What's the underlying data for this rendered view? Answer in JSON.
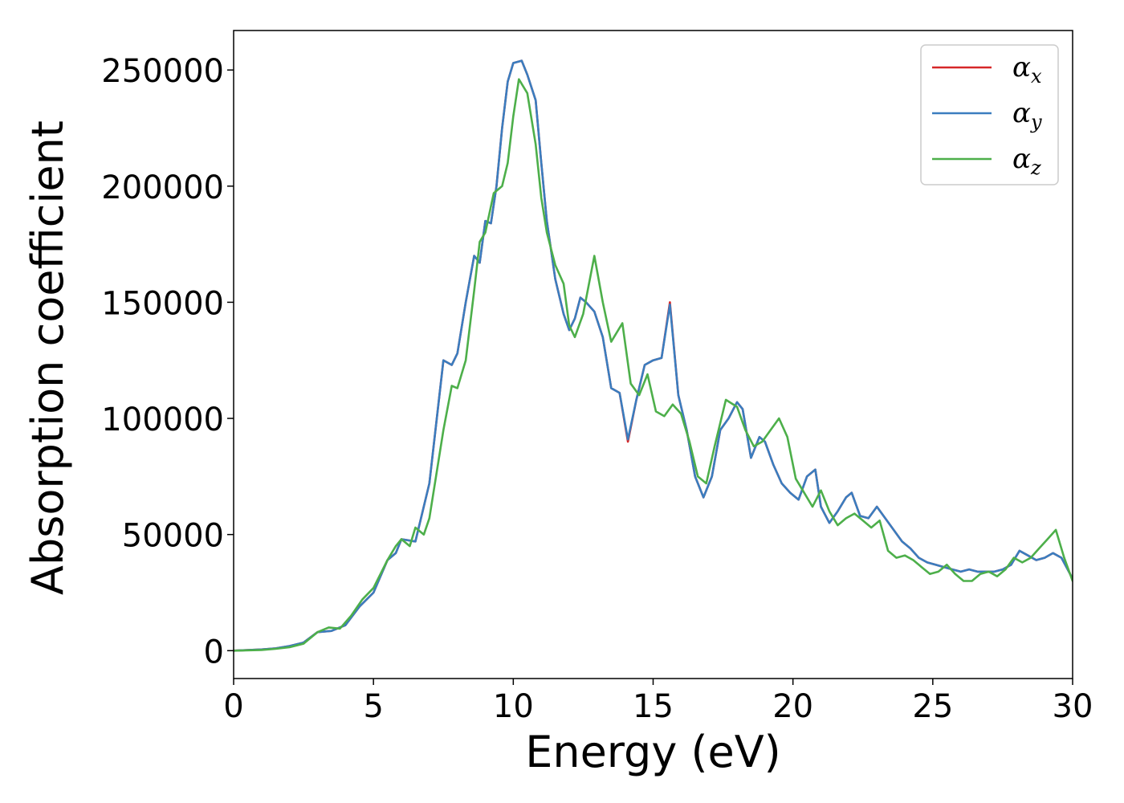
{
  "chart_data": {
    "type": "line",
    "title": "",
    "xlabel": "Energy (eV)",
    "ylabel": "Absorption coefficient",
    "xlim": [
      0,
      30
    ],
    "ylim": [
      -12000,
      267000
    ],
    "xticks": [
      0,
      5,
      10,
      15,
      20,
      25,
      30
    ],
    "yticks": [
      0,
      50000,
      100000,
      150000,
      200000,
      250000
    ],
    "grid": false,
    "legend_position": "top-right",
    "series": [
      {
        "name": "α_x",
        "legend_symbol": "α",
        "legend_sub": "x",
        "color": "#d62728",
        "x": [
          0,
          1,
          1.5,
          2,
          2.5,
          3,
          3.5,
          4,
          4.5,
          5,
          5.5,
          5.8,
          6,
          6.5,
          7,
          7.5,
          7.8,
          8,
          8.3,
          8.6,
          8.8,
          9,
          9.2,
          9.4,
          9.6,
          9.8,
          10,
          10.3,
          10.5,
          10.8,
          11,
          11.2,
          11.5,
          11.8,
          12,
          12.2,
          12.4,
          12.6,
          12.9,
          13.2,
          13.5,
          13.8,
          14.1,
          14.4,
          14.7,
          15,
          15.3,
          15.6,
          15.9,
          16.2,
          16.5,
          16.8,
          17.1,
          17.4,
          17.7,
          18,
          18.2,
          18.5,
          18.8,
          19,
          19.3,
          19.6,
          19.9,
          20.2,
          20.5,
          20.8,
          21,
          21.3,
          21.6,
          21.9,
          22.1,
          22.4,
          22.7,
          23,
          23.3,
          23.6,
          23.9,
          24.2,
          24.5,
          24.8,
          25.1,
          25.4,
          25.7,
          26,
          26.3,
          26.6,
          26.9,
          27.2,
          27.5,
          27.8,
          28.1,
          28.4,
          28.7,
          29,
          29.3,
          29.6,
          30
        ],
        "y": [
          0,
          500,
          1000,
          2000,
          3500,
          8000,
          8500,
          11000,
          19000,
          25000,
          39000,
          42000,
          48000,
          47000,
          72000,
          125000,
          123000,
          128000,
          150000,
          170000,
          167000,
          185000,
          184000,
          200000,
          225000,
          245000,
          253000,
          254000,
          248000,
          237000,
          210000,
          185000,
          160000,
          145000,
          138000,
          143000,
          152000,
          150000,
          146000,
          135000,
          113000,
          111000,
          90000,
          108000,
          123000,
          125000,
          126000,
          150000,
          110000,
          95000,
          75000,
          66000,
          75000,
          95000,
          100000,
          107000,
          104000,
          83000,
          92000,
          90000,
          80000,
          72000,
          68000,
          65000,
          75000,
          78000,
          62000,
          55000,
          60000,
          66000,
          68000,
          58000,
          57000,
          62000,
          57000,
          52000,
          47000,
          44000,
          40000,
          38000,
          37000,
          36000,
          35000,
          34000,
          35000,
          34000,
          34000,
          34000,
          35000,
          37000,
          43000,
          41000,
          39000,
          40000,
          42000,
          40000,
          31000
        ]
      },
      {
        "name": "α_y",
        "legend_symbol": "α",
        "legend_sub": "y",
        "color": "#3a7dbf",
        "x": [
          0,
          1,
          1.5,
          2,
          2.5,
          3,
          3.5,
          4,
          4.5,
          5,
          5.5,
          5.8,
          6,
          6.5,
          7,
          7.5,
          7.8,
          8,
          8.3,
          8.6,
          8.8,
          9,
          9.2,
          9.4,
          9.6,
          9.8,
          10,
          10.3,
          10.5,
          10.8,
          11,
          11.2,
          11.5,
          11.8,
          12,
          12.2,
          12.4,
          12.6,
          12.9,
          13.2,
          13.5,
          13.8,
          14.1,
          14.4,
          14.7,
          15,
          15.3,
          15.6,
          15.9,
          16.2,
          16.5,
          16.8,
          17.1,
          17.4,
          17.7,
          18,
          18.2,
          18.5,
          18.8,
          19,
          19.3,
          19.6,
          19.9,
          20.2,
          20.5,
          20.8,
          21,
          21.3,
          21.6,
          21.9,
          22.1,
          22.4,
          22.7,
          23,
          23.3,
          23.6,
          23.9,
          24.2,
          24.5,
          24.8,
          25.1,
          25.4,
          25.7,
          26,
          26.3,
          26.6,
          26.9,
          27.2,
          27.5,
          27.8,
          28.1,
          28.4,
          28.7,
          29,
          29.3,
          29.6,
          30
        ],
        "y": [
          0,
          500,
          1000,
          2000,
          3500,
          8000,
          8500,
          11000,
          19000,
          25000,
          39000,
          42000,
          48000,
          47000,
          72000,
          125000,
          123000,
          128000,
          150000,
          170000,
          167000,
          185000,
          184000,
          200000,
          225000,
          245000,
          253000,
          254000,
          248000,
          237000,
          210000,
          185000,
          160000,
          145000,
          138000,
          143000,
          152000,
          150000,
          146000,
          135000,
          113000,
          111000,
          91000,
          108000,
          123000,
          125000,
          126000,
          149000,
          110000,
          95000,
          75000,
          66000,
          75000,
          95000,
          100000,
          107000,
          104000,
          83000,
          92000,
          90000,
          80000,
          72000,
          68000,
          65000,
          75000,
          78000,
          62000,
          55000,
          60000,
          66000,
          68000,
          58000,
          57000,
          62000,
          57000,
          52000,
          47000,
          44000,
          40000,
          38000,
          37000,
          36000,
          35000,
          34000,
          35000,
          34000,
          34000,
          34000,
          35000,
          37000,
          43000,
          41000,
          39000,
          40000,
          42000,
          40000,
          31000
        ]
      },
      {
        "name": "α_z",
        "legend_symbol": "α",
        "legend_sub": "z",
        "color": "#4daf4a",
        "x": [
          0,
          1,
          1.5,
          2,
          2.5,
          3,
          3.4,
          3.8,
          4.2,
          4.6,
          5,
          5.5,
          5.8,
          6,
          6.3,
          6.5,
          6.8,
          7,
          7.5,
          7.8,
          8,
          8.3,
          8.6,
          8.8,
          9,
          9.3,
          9.6,
          9.8,
          10,
          10.2,
          10.5,
          10.8,
          11,
          11.2,
          11.5,
          11.8,
          12,
          12.2,
          12.5,
          12.9,
          13.2,
          13.5,
          13.9,
          14.2,
          14.5,
          14.8,
          15.1,
          15.4,
          15.7,
          16,
          16.3,
          16.6,
          16.9,
          17.2,
          17.6,
          18,
          18.3,
          18.6,
          18.9,
          19.2,
          19.5,
          19.8,
          20.1,
          20.4,
          20.7,
          21,
          21.3,
          21.6,
          21.9,
          22.2,
          22.5,
          22.8,
          23.1,
          23.4,
          23.7,
          24,
          24.3,
          24.6,
          24.9,
          25.2,
          25.5,
          25.8,
          26.1,
          26.4,
          26.7,
          27,
          27.3,
          27.6,
          27.9,
          28.2,
          28.5,
          28.8,
          29.1,
          29.4,
          29.7,
          30
        ],
        "y": [
          0,
          300,
          800,
          1500,
          3000,
          8000,
          10000,
          9500,
          15000,
          22000,
          27000,
          39000,
          45000,
          48000,
          45000,
          53000,
          50000,
          57000,
          95000,
          114000,
          113000,
          125000,
          155000,
          176000,
          180000,
          197000,
          200000,
          210000,
          230000,
          246000,
          240000,
          218000,
          195000,
          180000,
          166000,
          158000,
          140000,
          135000,
          145000,
          170000,
          150000,
          133000,
          141000,
          115000,
          110000,
          119000,
          103000,
          101000,
          106000,
          102000,
          90000,
          75000,
          72000,
          88000,
          108000,
          105000,
          95000,
          88000,
          90000,
          95000,
          100000,
          92000,
          74000,
          68000,
          62000,
          69000,
          60000,
          54000,
          57000,
          59000,
          56000,
          53000,
          56000,
          43000,
          40000,
          41000,
          39000,
          36000,
          33000,
          34000,
          37000,
          33000,
          30000,
          30000,
          33000,
          34000,
          32000,
          35000,
          40000,
          38000,
          40000,
          44000,
          48000,
          52000,
          40000,
          30000
        ]
      }
    ]
  }
}
